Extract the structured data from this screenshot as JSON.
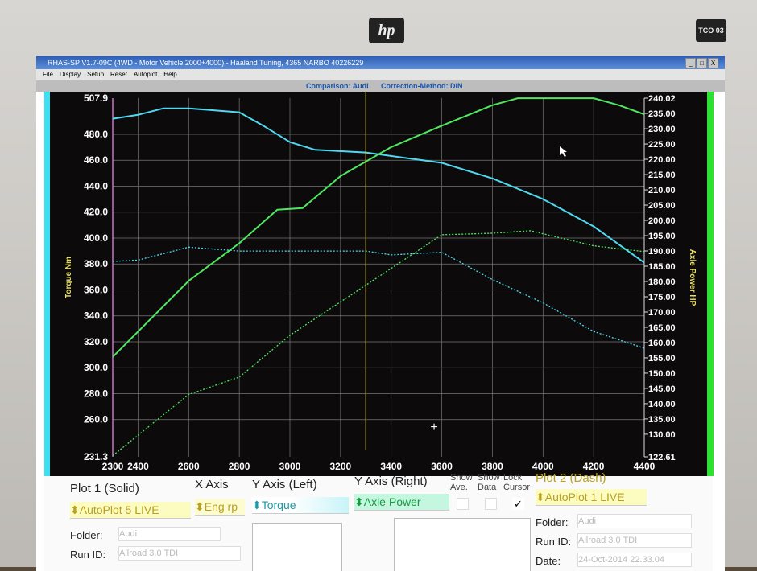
{
  "brand": {
    "logo": "hp",
    "badge": "TCO 03"
  },
  "window": {
    "title": "RHAS-SP V1.7-09C  (4WD - Motor Vehicle 2000+4000) - Haaland Tuning, 4365 NARBO 40226229",
    "buttons": [
      "_",
      "□",
      "X"
    ]
  },
  "menu": [
    "File",
    "Display",
    "Setup",
    "Reset",
    "Autoplot",
    "Help"
  ],
  "infobar": {
    "comparison": "Comparison: Audi",
    "correction": "Correction-Method: DIN"
  },
  "chart_data": {
    "type": "line",
    "ylabel_left": "Torque Nm",
    "ylabel_right": "Axle Power HP",
    "xlim": [
      2300,
      4400
    ],
    "ylim_left": [
      231.3,
      507.9
    ],
    "ylim_right": [
      122.61,
      240.02
    ],
    "x_ticks": [
      "2300",
      "2400",
      "2600",
      "2800",
      "3000",
      "3200",
      "3400",
      "3600",
      "3800",
      "4000",
      "4200",
      "4400"
    ],
    "y_left_ticks": [
      "507.9",
      "480.0",
      "460.0",
      "440.0",
      "420.0",
      "400.0",
      "380.0",
      "360.0",
      "340.0",
      "320.0",
      "300.0",
      "280.0",
      "260.0",
      "231.3"
    ],
    "y_right_ticks": [
      "240.02",
      "235.00",
      "230.00",
      "225.00",
      "220.00",
      "215.00",
      "210.00",
      "205.00",
      "200.00",
      "195.00",
      "190.00",
      "185.00",
      "180.00",
      "175.00",
      "170.00",
      "165.00",
      "160.00",
      "155.00",
      "150.00",
      "145.00",
      "140.00",
      "135.00",
      "130.00",
      "122.61"
    ],
    "grid": true,
    "cursor_x": 3300,
    "colors": {
      "torque": "#4fd8f0",
      "power": "#4ee860",
      "cursor": "#e8e060",
      "axis_left": "#d070d0"
    },
    "series": [
      {
        "plot": "Plot 1 (Solid)",
        "quantity": "Torque",
        "axis": "left",
        "style": "solid",
        "x": [
          2300,
          2400,
          2500,
          2600,
          2800,
          2900,
          3000,
          3100,
          3300,
          3600,
          3800,
          4000,
          4200,
          4400
        ],
        "y": [
          492,
          495,
          500,
          500,
          497,
          486,
          474,
          468,
          466,
          458,
          446,
          430,
          409,
          381
        ]
      },
      {
        "plot": "Plot 1 (Solid)",
        "quantity": "Axle Power",
        "axis": "right",
        "style": "solid",
        "x": [
          2300,
          2600,
          2800,
          2950,
          3050,
          3200,
          3400,
          3600,
          3800,
          3900,
          4200,
          4300,
          4400
        ],
        "y": [
          155.3,
          180.2,
          192.5,
          203.5,
          204,
          214.5,
          224,
          231,
          237.7,
          240,
          240,
          237.7,
          234.7
        ]
      },
      {
        "plot": "Plot 2 (Dash)",
        "quantity": "Torque",
        "axis": "left",
        "style": "dashed",
        "x": [
          2300,
          2400,
          2600,
          2800,
          3300,
          3400,
          3600,
          3800,
          4000,
          4200,
          4400
        ],
        "y": [
          382,
          383,
          393,
          390,
          390,
          387,
          389,
          368,
          350,
          328,
          315
        ]
      },
      {
        "plot": "Plot 2 (Dash)",
        "quantity": "Axle Power",
        "axis": "right",
        "style": "dashed",
        "x": [
          2300,
          2600,
          2800,
          3000,
          3300,
          3500,
          3600,
          3800,
          3950,
          4200,
          4400
        ],
        "y": [
          123,
          143,
          148.7,
          162.4,
          178.8,
          189.8,
          195.3,
          195.8,
          196.6,
          191.7,
          189.8
        ]
      }
    ]
  },
  "panel": {
    "plot1_label": "Plot 1 (Solid)",
    "plot1_value": "AutoPlot 5 LIVE",
    "xaxis_label": "X Axis",
    "xaxis_value": "Eng rp",
    "yleft_label": "Y Axis (Left)",
    "yleft_value": "Torque",
    "yright_label": "Y Axis (Right)",
    "yright_value": "Axle Power",
    "show_ave": "Show Ave.",
    "show_data": "Show Data",
    "lock_cursor": "Lock Cursor",
    "lock_cursor_checked": true,
    "folder_label": "Folder:",
    "folder1": "Audi",
    "runid_label": "Run ID:",
    "runid1": "Allroad 3.0 TDI",
    "plot2_label": "Plot 2 (Dash)",
    "plot2_value": "AutoPlot 1 LIVE",
    "folder2": "Audi",
    "runid2": "Allroad 3.0 TDI",
    "date_label": "Date:",
    "date2": "24-Oct-2014  22.33.04"
  }
}
